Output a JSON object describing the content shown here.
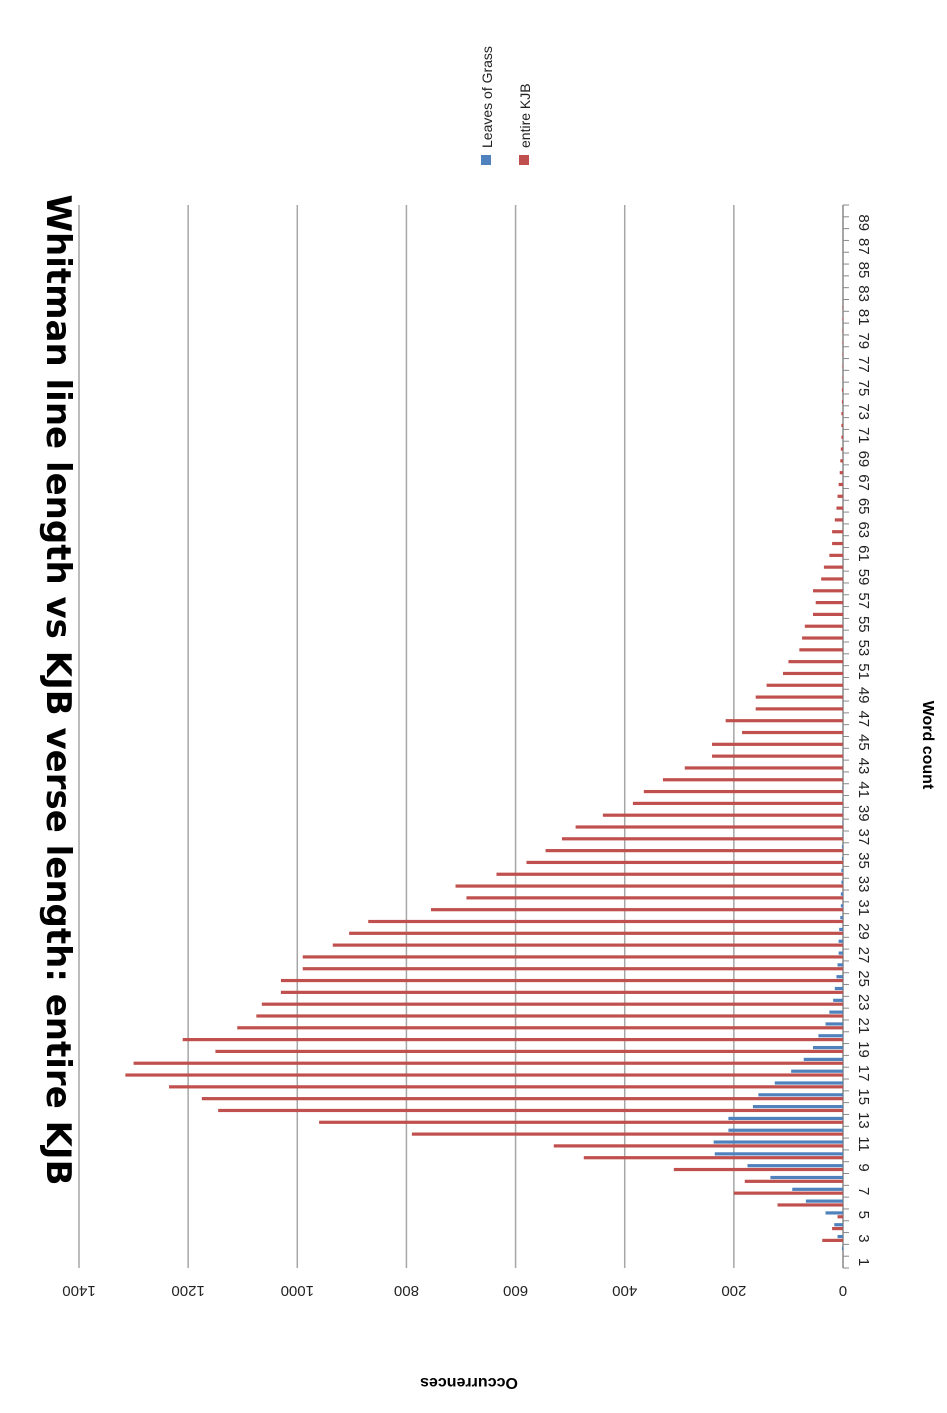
{
  "chart_data": {
    "type": "bar",
    "orientation": "rotated-90-clockwise",
    "title": "Whitman line length vs KJB verse length: entire KJB",
    "xlabel": "Word count",
    "ylabel": "Occurrences",
    "ylim": [
      0,
      1400
    ],
    "yticks": [
      0,
      200,
      400,
      600,
      800,
      1000,
      1200,
      1400
    ],
    "grid": true,
    "legend_position": "top",
    "categories": [
      1,
      2,
      3,
      4,
      5,
      6,
      7,
      8,
      9,
      10,
      11,
      12,
      13,
      14,
      15,
      16,
      17,
      18,
      19,
      20,
      21,
      22,
      23,
      24,
      25,
      26,
      27,
      28,
      29,
      30,
      31,
      32,
      33,
      34,
      35,
      36,
      37,
      38,
      39,
      40,
      41,
      42,
      43,
      44,
      45,
      46,
      47,
      48,
      49,
      50,
      51,
      52,
      53,
      54,
      55,
      56,
      57,
      58,
      59,
      60,
      61,
      62,
      63,
      64,
      65,
      66,
      67,
      68,
      69,
      70,
      71,
      72,
      73,
      74,
      75,
      76,
      77,
      78,
      79,
      80,
      81,
      82,
      83,
      84,
      85,
      86,
      87,
      88,
      89,
      90
    ],
    "tick_labels": [
      "1",
      "3",
      "5",
      "7",
      "9",
      "11",
      "13",
      "15",
      "17",
      "19",
      "21",
      "23",
      "25",
      "27",
      "29",
      "31",
      "33",
      "35",
      "37",
      "39",
      "41",
      "43",
      "45",
      "47",
      "49",
      "51",
      "53",
      "55",
      "57",
      "59",
      "61",
      "63",
      "65",
      "67",
      "69",
      "71",
      "73",
      "75",
      "77",
      "79",
      "81",
      "83",
      "85",
      "87",
      "89"
    ],
    "series": [
      {
        "name": "Leaves of Grass",
        "color": "#4f81bd",
        "values": [
          0,
          2,
          10,
          16,
          32,
          68,
          93,
          133,
          175,
          235,
          237,
          210,
          210,
          165,
          155,
          125,
          95,
          72,
          55,
          45,
          32,
          25,
          18,
          15,
          12,
          10,
          8,
          8,
          7,
          5,
          4,
          4,
          3,
          3,
          2,
          2,
          1,
          1,
          1,
          1,
          1,
          0,
          0,
          0,
          0,
          0,
          0,
          0,
          0,
          0,
          0,
          0,
          0,
          0,
          0,
          0,
          0,
          0,
          0,
          0,
          0,
          0,
          0,
          0,
          0,
          0,
          0,
          0,
          0,
          0,
          0,
          0,
          0,
          0,
          0,
          0,
          0,
          0,
          0,
          0,
          0,
          0,
          0,
          0,
          0,
          0,
          0,
          0,
          0,
          0
        ]
      },
      {
        "name": "entire KJB",
        "color": "#c0504d",
        "values": [
          0,
          0,
          38,
          20,
          10,
          120,
          200,
          180,
          310,
          475,
          530,
          790,
          960,
          1145,
          1175,
          1235,
          1315,
          1300,
          1150,
          1210,
          1110,
          1075,
          1065,
          1030,
          1030,
          990,
          990,
          935,
          905,
          870,
          755,
          690,
          710,
          635,
          580,
          545,
          515,
          490,
          440,
          385,
          365,
          330,
          290,
          240,
          240,
          185,
          215,
          160,
          160,
          140,
          110,
          100,
          80,
          75,
          70,
          55,
          50,
          55,
          40,
          35,
          25,
          20,
          20,
          15,
          12,
          10,
          8,
          6,
          5,
          4,
          3,
          3,
          3,
          2,
          2,
          1,
          1,
          1,
          1,
          1,
          1,
          1,
          0,
          0,
          0,
          0,
          0,
          0,
          0,
          0
        ]
      }
    ]
  }
}
